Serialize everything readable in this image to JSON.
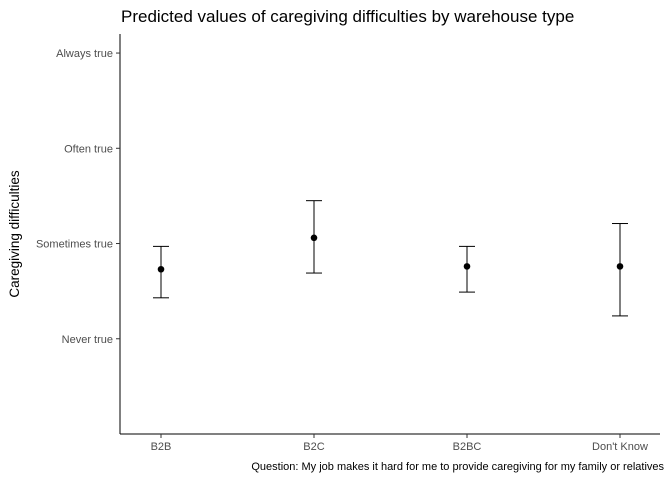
{
  "chart_data": {
    "type": "scatter",
    "title": "Predicted values of caregiving difficulties by warehouse type",
    "xlabel": "",
    "ylabel": "Caregiving difficulties",
    "caption": "Question: My job makes it hard for me to provide caregiving for my family or relatives",
    "categories": [
      "B2B",
      "B2C",
      "B2BC",
      "Don't Know"
    ],
    "y_ticks": [
      {
        "value": 1,
        "label": "Never true"
      },
      {
        "value": 2,
        "label": "Sometimes true"
      },
      {
        "value": 3,
        "label": "Often true"
      },
      {
        "value": 4,
        "label": "Always true"
      }
    ],
    "ylim": [
      0,
      4.2
    ],
    "series": [
      {
        "values": [
          1.73,
          2.06,
          1.76,
          1.76
        ],
        "ci_low": [
          1.43,
          1.69,
          1.49,
          1.24
        ],
        "ci_high": [
          1.97,
          2.45,
          1.97,
          2.21
        ]
      }
    ],
    "grid": false,
    "legend": "none"
  }
}
